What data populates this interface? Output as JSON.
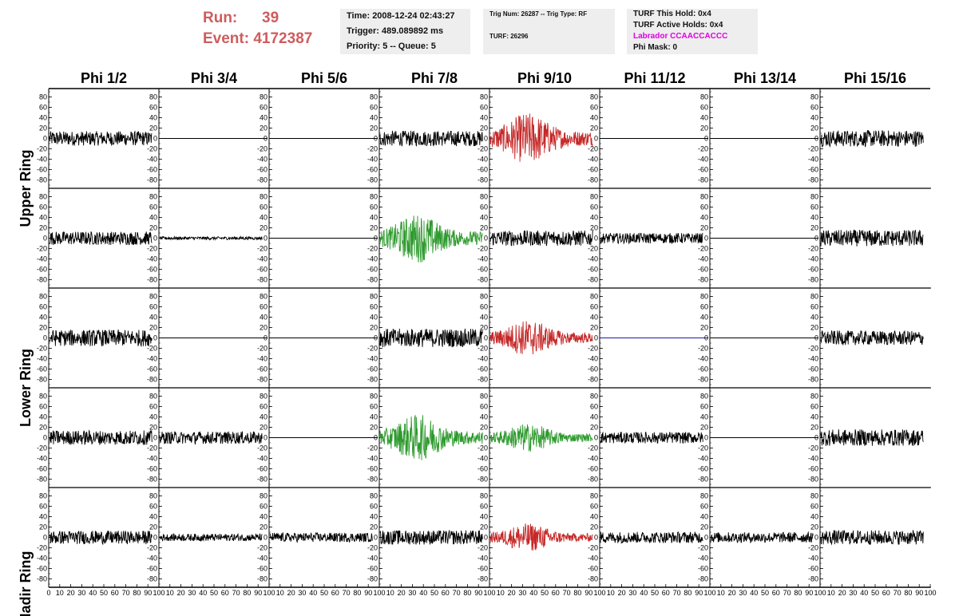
{
  "header": {
    "run_label": "Run:",
    "run_value": "39",
    "event_label": "Event:",
    "event_value": "4172387",
    "time": "Time: 2008-12-24 02:43:27",
    "trigger": "Trigger: 489.089892 ms",
    "priority": "Priority: 5 -- Queue: 5",
    "trig_num": "Trig Num: 26287 -- Trig Type: RF",
    "turf": "TURF: 26296",
    "turf_hold": "TURF This Hold: 0x4",
    "turf_active": "TURF Active Holds: 0x4",
    "labrador": "Labrador CCAACCACCC",
    "phi_mask": "Phi Mask: 0",
    "labrador_color": "#e000e0",
    "run_color": "#cf5c5c"
  },
  "chart_data": {
    "type": "line",
    "columns": [
      "Phi 1/2",
      "Phi 3/4",
      "Phi 5/6",
      "Phi 7/8",
      "Phi 9/10",
      "Phi 11/12",
      "Phi 13/14",
      "Phi 15/16"
    ],
    "rows": [
      "Upper Ring",
      "",
      "Lower Ring",
      "",
      "Nadir Ring"
    ],
    "xlim": [
      0,
      100
    ],
    "ylim": [
      -90,
      90
    ],
    "y_ticks": [
      -80,
      -60,
      -40,
      -20,
      0,
      20,
      40,
      60,
      80
    ],
    "x_ticks": [
      0,
      10,
      20,
      30,
      40,
      50,
      60,
      70,
      80,
      90,
      100
    ],
    "colors": {
      "default": "#000000",
      "red": "#c62828",
      "green": "#2e9a2e",
      "blue": "#1a1aaa"
    },
    "panels": [
      [
        {
          "mode": "noise",
          "amp": 14,
          "color": "default"
        },
        {
          "mode": "flat",
          "color": "default"
        },
        {
          "mode": "flat",
          "color": "default"
        },
        {
          "mode": "noise",
          "amp": 15,
          "color": "default"
        },
        {
          "mode": "burst",
          "amp": 40,
          "color": "red"
        },
        {
          "mode": "flat",
          "color": "default"
        },
        {
          "mode": "flat",
          "color": "default"
        },
        {
          "mode": "noise",
          "amp": 16,
          "color": "default"
        }
      ],
      [
        {
          "mode": "noise",
          "amp": 13,
          "color": "default"
        },
        {
          "mode": "noise",
          "amp": 3,
          "color": "default"
        },
        {
          "mode": "flat",
          "color": "default"
        },
        {
          "mode": "burst",
          "amp": 38,
          "color": "green"
        },
        {
          "mode": "noise",
          "amp": 15,
          "color": "default"
        },
        {
          "mode": "noise",
          "amp": 10,
          "color": "default"
        },
        {
          "mode": "flat",
          "color": "default"
        },
        {
          "mode": "noise",
          "amp": 16,
          "color": "default"
        }
      ],
      [
        {
          "mode": "noise",
          "amp": 16,
          "color": "default"
        },
        {
          "mode": "flat",
          "color": "default"
        },
        {
          "mode": "flat",
          "color": "default"
        },
        {
          "mode": "noise",
          "amp": 18,
          "color": "default"
        },
        {
          "mode": "burst",
          "amp": 28,
          "color": "red"
        },
        {
          "mode": "flat",
          "color": "blue"
        },
        {
          "mode": "flat",
          "color": "default"
        },
        {
          "mode": "noise",
          "amp": 14,
          "color": "default"
        }
      ],
      [
        {
          "mode": "noise",
          "amp": 14,
          "color": "default"
        },
        {
          "mode": "noise",
          "amp": 12,
          "color": "default"
        },
        {
          "mode": "flat",
          "color": "default"
        },
        {
          "mode": "burst",
          "amp": 36,
          "color": "green"
        },
        {
          "mode": "burst",
          "amp": 22,
          "color": "green"
        },
        {
          "mode": "noise",
          "amp": 11,
          "color": "default"
        },
        {
          "mode": "flat",
          "color": "default"
        },
        {
          "mode": "noise",
          "amp": 16,
          "color": "default"
        }
      ],
      [
        {
          "mode": "noise",
          "amp": 13,
          "color": "default"
        },
        {
          "mode": "noise",
          "amp": 7,
          "color": "default"
        },
        {
          "mode": "noise",
          "amp": 9,
          "color": "default"
        },
        {
          "mode": "noise",
          "amp": 14,
          "color": "default"
        },
        {
          "mode": "burst",
          "amp": 22,
          "color": "red"
        },
        {
          "mode": "noise",
          "amp": 11,
          "color": "default"
        },
        {
          "mode": "noise",
          "amp": 10,
          "color": "default"
        },
        {
          "mode": "noise",
          "amp": 14,
          "color": "default"
        }
      ]
    ]
  }
}
